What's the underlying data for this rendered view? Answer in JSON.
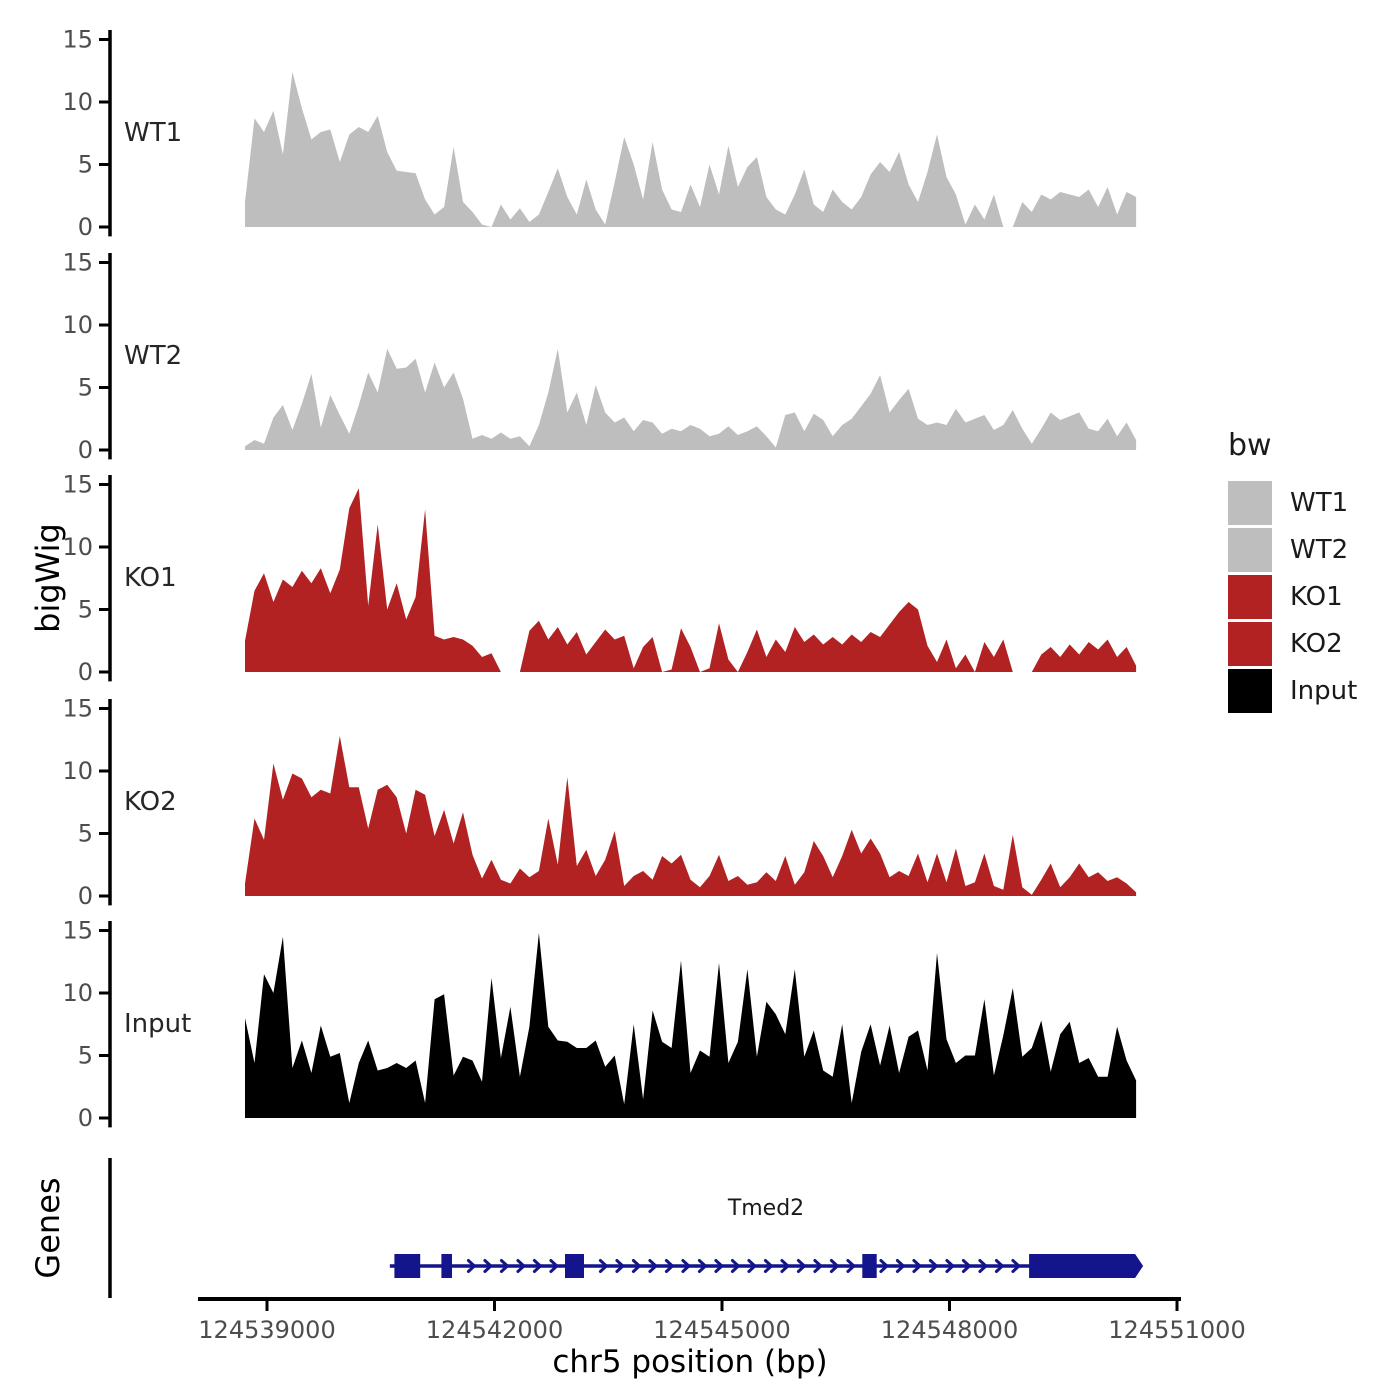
{
  "figure": {
    "background": "#ffffff",
    "y_axis_title": "bigWig",
    "genes_axis_title": "Genes",
    "x_axis_title": "chr5 position (bp)"
  },
  "legend": {
    "title": "bw",
    "items": [
      {
        "label": "WT1",
        "color": "#BEBEBE"
      },
      {
        "label": "WT2",
        "color": "#BEBEBE"
      },
      {
        "label": "KO1",
        "color": "#B22222"
      },
      {
        "label": "KO2",
        "color": "#B22222"
      },
      {
        "label": "Input",
        "color": "#000000"
      }
    ]
  },
  "chart_data": {
    "type": "area",
    "title": "",
    "xlabel": "chr5 position (bp)",
    "ylabel": "bigWig",
    "x_axis": {
      "ticks": [
        124539000,
        124542000,
        124545000,
        124548000,
        124551000
      ],
      "tick_labels": [
        "124539000",
        "124542000",
        "124545000",
        "124548000",
        "124551000"
      ],
      "xlim": [
        124538100,
        124551050
      ]
    },
    "y_axis": {
      "ticks": [
        0,
        5,
        10,
        15
      ],
      "tick_labels": [
        "0",
        "5",
        "10",
        "15"
      ],
      "lim": [
        0,
        15
      ]
    },
    "start_bp": 124538710,
    "bin_bp": 125,
    "tracks": [
      {
        "label": "WT1",
        "color": "#BEBEBE",
        "values": [
          2.0,
          8.7,
          7.6,
          9.3,
          5.8,
          12.4,
          9.5,
          7.0,
          7.6,
          7.8,
          5.2,
          7.4,
          8.0,
          7.6,
          8.9,
          6.0,
          4.5,
          4.4,
          4.3,
          2.2,
          1.0,
          1.6,
          6.4,
          2.0,
          1.2,
          0.2,
          0.0,
          1.8,
          0.6,
          1.5,
          0.4,
          1.0,
          2.8,
          4.7,
          2.4,
          1.0,
          3.8,
          1.4,
          0.2,
          3.6,
          7.2,
          5.0,
          2.2,
          6.8,
          3.0,
          1.4,
          1.2,
          3.4,
          1.6,
          5.0,
          2.6,
          6.5,
          3.2,
          4.8,
          5.6,
          2.4,
          1.4,
          1.0,
          2.6,
          4.6,
          1.8,
          1.2,
          3.0,
          2.0,
          1.4,
          2.4,
          4.2,
          5.2,
          4.4,
          6.0,
          3.4,
          2.0,
          4.4,
          7.4,
          4.0,
          2.6,
          0.2,
          1.8,
          0.6,
          2.6,
          0.0,
          0.0,
          2.0,
          1.2,
          2.6,
          2.2,
          2.8,
          2.6,
          2.4,
          3.0,
          1.6,
          3.2,
          1.0,
          2.8,
          2.4
        ]
      },
      {
        "label": "WT2",
        "color": "#BEBEBE",
        "values": [
          0.3,
          0.8,
          0.5,
          2.6,
          3.6,
          1.6,
          3.7,
          6.1,
          1.8,
          4.4,
          2.8,
          1.3,
          3.6,
          6.2,
          4.6,
          8.1,
          6.5,
          6.6,
          7.3,
          4.6,
          7.0,
          5.0,
          6.2,
          4.1,
          0.9,
          1.2,
          0.9,
          1.4,
          0.9,
          1.1,
          0.3,
          2.0,
          4.6,
          8.1,
          3.0,
          4.6,
          2.0,
          5.2,
          3.0,
          2.2,
          2.6,
          1.5,
          2.4,
          2.2,
          1.3,
          1.7,
          1.5,
          2.0,
          1.7,
          1.1,
          1.3,
          1.9,
          1.2,
          1.5,
          1.9,
          1.1,
          0.2,
          2.8,
          3.0,
          1.5,
          2.9,
          2.4,
          1.1,
          2.0,
          2.5,
          3.5,
          4.5,
          6.0,
          3.0,
          4.0,
          4.9,
          2.5,
          2.0,
          2.2,
          2.0,
          3.3,
          2.2,
          2.5,
          2.8,
          1.6,
          2.0,
          3.2,
          1.7,
          0.5,
          1.7,
          3.0,
          2.4,
          2.7,
          3.0,
          1.7,
          1.5,
          2.5,
          1.1,
          2.2,
          0.8
        ]
      },
      {
        "label": "KO1",
        "color": "#B22222",
        "values": [
          2.5,
          6.5,
          7.9,
          5.6,
          7.4,
          6.8,
          8.1,
          7.1,
          8.3,
          6.3,
          8.2,
          13.1,
          14.7,
          5.3,
          11.8,
          5.0,
          7.1,
          4.2,
          6.0,
          13.0,
          2.9,
          2.6,
          2.8,
          2.6,
          2.1,
          1.2,
          1.5,
          0.0,
          0.0,
          0.0,
          3.3,
          4.1,
          2.6,
          3.6,
          2.2,
          3.2,
          1.4,
          2.4,
          3.4,
          2.6,
          2.9,
          0.3,
          2.0,
          2.8,
          0.0,
          0.2,
          3.5,
          2.0,
          0.0,
          0.3,
          3.9,
          1.0,
          0.0,
          1.6,
          3.4,
          1.2,
          2.6,
          1.6,
          3.6,
          2.4,
          3.0,
          2.2,
          2.8,
          2.2,
          3.0,
          2.4,
          3.2,
          2.8,
          3.8,
          4.8,
          5.6,
          5.0,
          2.1,
          0.8,
          2.6,
          0.3,
          1.4,
          0.0,
          2.4,
          1.2,
          2.6,
          0.0,
          0.0,
          0.0,
          1.4,
          2.0,
          1.2,
          2.2,
          1.4,
          2.4,
          1.8,
          2.6,
          1.2,
          2.0,
          0.5
        ]
      },
      {
        "label": "KO2",
        "color": "#B22222",
        "values": [
          1.0,
          6.2,
          4.5,
          10.6,
          7.7,
          9.8,
          9.4,
          7.9,
          8.5,
          8.2,
          12.8,
          8.7,
          8.7,
          5.4,
          8.5,
          8.9,
          7.9,
          5.0,
          8.5,
          8.1,
          4.8,
          6.9,
          4.2,
          6.7,
          3.3,
          1.4,
          2.9,
          1.3,
          1.0,
          2.2,
          1.5,
          2.0,
          6.2,
          2.5,
          9.5,
          2.4,
          3.7,
          1.6,
          2.9,
          5.2,
          0.8,
          1.6,
          2.0,
          1.3,
          3.2,
          2.6,
          3.3,
          1.3,
          0.7,
          1.6,
          3.3,
          1.2,
          1.6,
          0.9,
          1.1,
          1.9,
          1.2,
          3.2,
          0.9,
          1.9,
          4.4,
          3.2,
          1.5,
          3.2,
          5.3,
          3.4,
          4.6,
          3.4,
          1.5,
          2.0,
          1.6,
          3.4,
          1.1,
          3.4,
          1.1,
          3.8,
          0.8,
          1.1,
          3.4,
          0.8,
          0.5,
          4.9,
          0.7,
          0.1,
          1.3,
          2.6,
          0.7,
          1.5,
          2.6,
          1.5,
          1.9,
          1.2,
          1.5,
          1.0,
          0.3
        ]
      },
      {
        "label": "Input",
        "color": "#000000",
        "values": [
          8.0,
          4.4,
          11.5,
          10.0,
          14.5,
          4.0,
          6.2,
          3.6,
          7.4,
          4.9,
          5.2,
          1.2,
          4.4,
          6.2,
          3.8,
          4.0,
          4.4,
          4.0,
          4.6,
          1.2,
          9.5,
          9.9,
          3.4,
          4.9,
          4.6,
          2.9,
          11.2,
          4.8,
          8.9,
          3.3,
          7.3,
          14.8,
          7.3,
          6.2,
          6.1,
          5.6,
          5.6,
          6.2,
          4.1,
          5.0,
          1.1,
          7.5,
          1.5,
          8.6,
          6.1,
          5.6,
          12.6,
          3.6,
          5.4,
          4.9,
          12.4,
          4.4,
          6.1,
          11.9,
          4.9,
          9.3,
          8.3,
          6.7,
          11.9,
          4.9,
          7.0,
          3.8,
          3.3,
          7.5,
          1.2,
          5.3,
          7.5,
          4.2,
          7.4,
          3.6,
          6.5,
          7.0,
          3.8,
          13.2,
          6.3,
          4.4,
          5.0,
          5.0,
          9.5,
          3.4,
          6.6,
          10.4,
          4.9,
          5.6,
          7.8,
          3.7,
          6.7,
          7.7,
          4.4,
          4.8,
          3.3,
          3.3,
          7.3,
          4.6,
          3.0
        ]
      }
    ],
    "gene": {
      "name": "Tmed2",
      "color": "#14148C",
      "strand": "+",
      "start_bp": 124540620,
      "end_bp": 124550560,
      "exons_bp": [
        [
          124540680,
          124541020
        ],
        [
          124541300,
          124541440
        ],
        [
          124542930,
          124543180
        ],
        [
          124546850,
          124547040
        ],
        [
          124549050,
          124550500
        ]
      ]
    }
  }
}
